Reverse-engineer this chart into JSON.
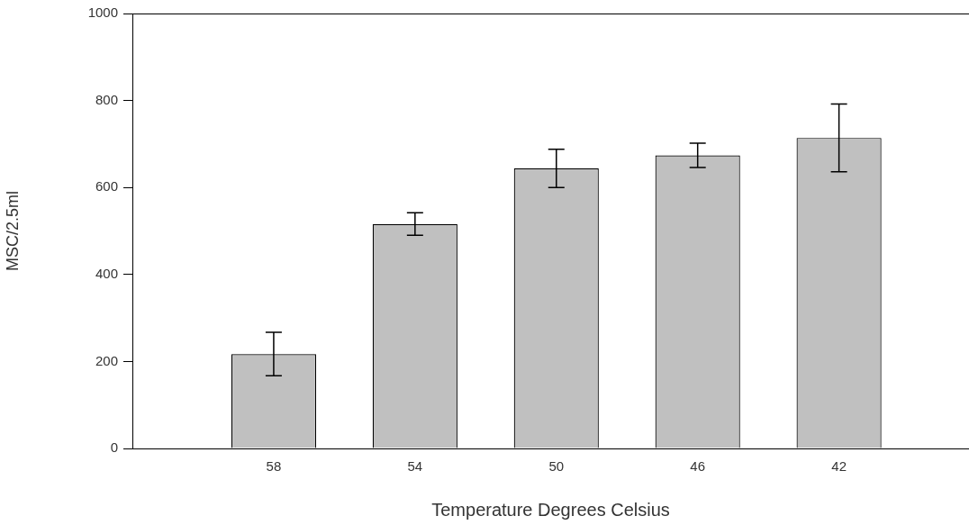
{
  "chart_data": {
    "type": "bar",
    "xlabel": "Temperature Degrees Celsius",
    "ylabel": "MSC/2.5ml",
    "categories": [
      "58",
      "54",
      "50",
      "46",
      "42"
    ],
    "values": [
      217,
      516,
      644,
      674,
      714
    ],
    "errors": [
      50,
      26,
      44,
      28,
      78
    ],
    "color": "#c0c0c0",
    "ylim": [
      0,
      1000
    ],
    "yticks": [
      0,
      200,
      400,
      600,
      800,
      1000
    ]
  }
}
